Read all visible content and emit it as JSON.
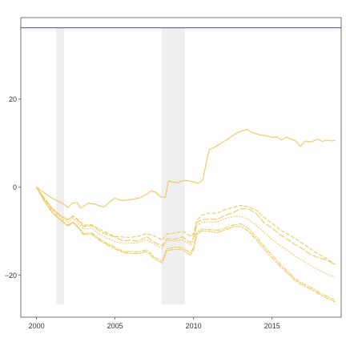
{
  "chart_data": {
    "type": "line",
    "title": "",
    "xlabel": "",
    "ylabel": "",
    "xlim": [
      1999.0,
      2019.4
    ],
    "ylim": [
      -29.5,
      38.5
    ],
    "grid": false,
    "legend": "none",
    "x_ticks": [
      2000,
      2005,
      2010,
      2015
    ],
    "x_tick_labels": [
      "2000",
      "2005",
      "2010",
      "2015"
    ],
    "y_ticks": [
      -20,
      0,
      20
    ],
    "y_tick_labels": [
      "−20",
      "0",
      "20"
    ],
    "top_line": {
      "y": 36.2,
      "color": "#6a6aa6"
    },
    "shaded_periods": [
      {
        "x0": 2001.25,
        "x1": 2001.75,
        "y0": -26.6,
        "y1": 36.2
      },
      {
        "x0": 2007.95,
        "x1": 2009.45,
        "y0": -26.6,
        "y1": 36.2
      }
    ],
    "colors": {
      "series": "#f2c85b",
      "shade": "#efefef",
      "axis": "#555555"
    },
    "series": [
      {
        "style": "solid",
        "points": [
          [
            2000.0,
            0.0
          ],
          [
            2000.3,
            -0.8
          ],
          [
            2000.6,
            -1.5
          ],
          [
            2000.9,
            -2.3
          ],
          [
            2001.2,
            -2.9
          ],
          [
            2001.5,
            -3.4
          ],
          [
            2001.8,
            -4.0
          ],
          [
            2002.0,
            -4.6
          ],
          [
            2002.3,
            -3.6
          ],
          [
            2002.6,
            -3.5
          ],
          [
            2002.8,
            -4.8
          ],
          [
            2003.0,
            -4.3
          ],
          [
            2003.3,
            -3.6
          ],
          [
            2003.7,
            -3.8
          ],
          [
            2004.0,
            -4.2
          ],
          [
            2004.3,
            -4.5
          ],
          [
            2004.6,
            -3.5
          ],
          [
            2005.0,
            -2.5
          ],
          [
            2005.4,
            -3.0
          ],
          [
            2005.8,
            -2.9
          ],
          [
            2006.2,
            -2.7
          ],
          [
            2006.6,
            -2.4
          ],
          [
            2007.0,
            -1.6
          ],
          [
            2007.3,
            -0.8
          ],
          [
            2007.6,
            -1.2
          ],
          [
            2007.9,
            -2.2
          ],
          [
            2008.2,
            -2.3
          ],
          [
            2008.4,
            1.4
          ],
          [
            2008.7,
            1.2
          ],
          [
            2009.0,
            1.0
          ],
          [
            2009.3,
            1.5
          ],
          [
            2009.6,
            1.5
          ],
          [
            2009.9,
            1.3
          ],
          [
            2010.2,
            1.0
          ],
          [
            2010.4,
            1.1
          ],
          [
            2010.6,
            1.8
          ],
          [
            2010.8,
            5.5
          ],
          [
            2011.0,
            8.5
          ],
          [
            2011.4,
            9.2
          ],
          [
            2011.8,
            10.1
          ],
          [
            2012.3,
            11.2
          ],
          [
            2012.7,
            12.2
          ],
          [
            2013.1,
            12.8
          ],
          [
            2013.4,
            13.1
          ],
          [
            2013.8,
            12.3
          ],
          [
            2014.2,
            11.9
          ],
          [
            2014.6,
            11.7
          ],
          [
            2015.0,
            11.3
          ],
          [
            2015.3,
            11.4
          ],
          [
            2015.6,
            10.7
          ],
          [
            2015.9,
            11.4
          ],
          [
            2016.2,
            10.9
          ],
          [
            2016.5,
            10.5
          ],
          [
            2016.8,
            9.3
          ],
          [
            2017.1,
            10.5
          ],
          [
            2017.5,
            10.3
          ],
          [
            2017.9,
            10.9
          ],
          [
            2018.2,
            10.4
          ],
          [
            2018.5,
            10.7
          ],
          [
            2018.8,
            10.5
          ],
          [
            2019.0,
            10.6
          ]
        ]
      },
      {
        "style": "longdash",
        "points": [
          [
            2000.0,
            0.0
          ],
          [
            2000.5,
            -2.5
          ],
          [
            2001.0,
            -4.8
          ],
          [
            2001.5,
            -6.3
          ],
          [
            2002.0,
            -7.5
          ],
          [
            2002.3,
            -6.6
          ],
          [
            2002.6,
            -7.4
          ],
          [
            2003.0,
            -8.9
          ],
          [
            2003.5,
            -8.7
          ],
          [
            2004.0,
            -9.9
          ],
          [
            2004.5,
            -10.8
          ],
          [
            2005.0,
            -11.3
          ],
          [
            2005.5,
            -12.2
          ],
          [
            2006.0,
            -12.0
          ],
          [
            2006.5,
            -12.3
          ],
          [
            2007.0,
            -11.2
          ],
          [
            2007.5,
            -12.5
          ],
          [
            2008.0,
            -13.3
          ],
          [
            2008.3,
            -11.7
          ],
          [
            2008.8,
            -11.8
          ],
          [
            2009.3,
            -11.3
          ],
          [
            2009.8,
            -12.6
          ],
          [
            2010.0,
            -11.4
          ],
          [
            2010.2,
            -8.0
          ],
          [
            2010.5,
            -7.4
          ],
          [
            2011.0,
            -7.2
          ],
          [
            2011.5,
            -7.3
          ],
          [
            2012.0,
            -6.4
          ],
          [
            2012.5,
            -5.8
          ],
          [
            2013.0,
            -4.9
          ],
          [
            2013.5,
            -4.9
          ],
          [
            2014.0,
            -6.0
          ],
          [
            2014.5,
            -8.1
          ],
          [
            2015.0,
            -9.3
          ],
          [
            2015.5,
            -10.7
          ],
          [
            2016.0,
            -11.9
          ],
          [
            2016.5,
            -13.1
          ],
          [
            2017.0,
            -14.1
          ],
          [
            2017.5,
            -15.4
          ],
          [
            2018.0,
            -16.0
          ],
          [
            2018.5,
            -16.6
          ],
          [
            2019.0,
            -17.5
          ]
        ]
      },
      {
        "style": "dashed",
        "points": [
          [
            2000.0,
            0.0
          ],
          [
            2000.5,
            -2.6
          ],
          [
            2001.0,
            -5.0
          ],
          [
            2001.5,
            -6.4
          ],
          [
            2002.0,
            -7.4
          ],
          [
            2002.3,
            -6.5
          ],
          [
            2002.6,
            -7.2
          ],
          [
            2003.0,
            -8.6
          ],
          [
            2003.5,
            -8.5
          ],
          [
            2004.0,
            -9.5
          ],
          [
            2004.5,
            -10.4
          ],
          [
            2005.0,
            -11.2
          ],
          [
            2005.5,
            -11.3
          ],
          [
            2006.0,
            -11.4
          ],
          [
            2006.5,
            -11.1
          ],
          [
            2007.0,
            -10.5
          ],
          [
            2007.5,
            -11.1
          ],
          [
            2008.0,
            -12.0
          ],
          [
            2008.3,
            -10.6
          ],
          [
            2008.8,
            -10.4
          ],
          [
            2009.3,
            -10.0
          ],
          [
            2009.8,
            -11.1
          ],
          [
            2010.0,
            -10.6
          ],
          [
            2010.2,
            -7.6
          ],
          [
            2010.5,
            -6.4
          ],
          [
            2011.0,
            -5.9
          ],
          [
            2011.5,
            -5.9
          ],
          [
            2012.0,
            -5.1
          ],
          [
            2012.5,
            -4.6
          ],
          [
            2013.0,
            -4.1
          ],
          [
            2013.5,
            -4.5
          ],
          [
            2014.0,
            -5.2
          ],
          [
            2014.5,
            -6.9
          ],
          [
            2015.0,
            -8.2
          ],
          [
            2015.5,
            -9.6
          ],
          [
            2016.0,
            -10.7
          ],
          [
            2016.5,
            -11.7
          ],
          [
            2017.0,
            -12.9
          ],
          [
            2017.5,
            -14.1
          ],
          [
            2018.0,
            -15.3
          ],
          [
            2018.5,
            -16.3
          ],
          [
            2019.0,
            -17.5
          ]
        ]
      },
      {
        "style": "dotted",
        "points": [
          [
            2000.0,
            0.0
          ],
          [
            2000.5,
            -2.8
          ],
          [
            2001.0,
            -5.1
          ],
          [
            2001.5,
            -6.7
          ],
          [
            2002.0,
            -8.0
          ],
          [
            2002.3,
            -7.1
          ],
          [
            2002.6,
            -7.9
          ],
          [
            2003.0,
            -9.5
          ],
          [
            2003.5,
            -9.3
          ],
          [
            2004.0,
            -10.6
          ],
          [
            2004.5,
            -11.6
          ],
          [
            2005.0,
            -12.3
          ],
          [
            2005.5,
            -12.8
          ],
          [
            2006.0,
            -12.7
          ],
          [
            2006.5,
            -12.6
          ],
          [
            2007.0,
            -11.9
          ],
          [
            2007.5,
            -12.9
          ],
          [
            2008.0,
            -13.9
          ],
          [
            2008.3,
            -12.1
          ],
          [
            2008.8,
            -12.2
          ],
          [
            2009.3,
            -11.9
          ],
          [
            2009.8,
            -13.2
          ],
          [
            2010.0,
            -12.1
          ],
          [
            2010.2,
            -8.8
          ],
          [
            2010.5,
            -7.9
          ],
          [
            2011.0,
            -7.9
          ],
          [
            2011.5,
            -7.9
          ],
          [
            2012.0,
            -7.1
          ],
          [
            2012.5,
            -6.7
          ],
          [
            2013.0,
            -6.6
          ],
          [
            2013.5,
            -7.3
          ],
          [
            2014.0,
            -8.7
          ],
          [
            2014.5,
            -10.3
          ],
          [
            2015.0,
            -11.9
          ],
          [
            2015.5,
            -13.2
          ],
          [
            2016.0,
            -14.4
          ],
          [
            2016.5,
            -15.7
          ],
          [
            2017.0,
            -16.8
          ],
          [
            2017.5,
            -17.9
          ],
          [
            2018.0,
            -18.8
          ],
          [
            2018.5,
            -19.7
          ],
          [
            2019.0,
            -20.5
          ]
        ]
      },
      {
        "style": "dashdot",
        "points": [
          [
            2000.0,
            0.0
          ],
          [
            2000.5,
            -3.1
          ],
          [
            2001.0,
            -5.6
          ],
          [
            2001.5,
            -7.2
          ],
          [
            2002.0,
            -8.6
          ],
          [
            2002.3,
            -7.8
          ],
          [
            2002.6,
            -8.8
          ],
          [
            2003.0,
            -10.5
          ],
          [
            2003.5,
            -10.3
          ],
          [
            2004.0,
            -11.7
          ],
          [
            2004.5,
            -12.8
          ],
          [
            2005.0,
            -13.6
          ],
          [
            2005.5,
            -14.6
          ],
          [
            2006.0,
            -14.6
          ],
          [
            2006.5,
            -14.7
          ],
          [
            2007.0,
            -14.2
          ],
          [
            2007.5,
            -15.8
          ],
          [
            2008.0,
            -16.8
          ],
          [
            2008.3,
            -14.0
          ],
          [
            2008.8,
            -13.6
          ],
          [
            2009.3,
            -13.8
          ],
          [
            2009.8,
            -14.9
          ],
          [
            2010.0,
            -13.8
          ],
          [
            2010.2,
            -10.3
          ],
          [
            2010.5,
            -9.5
          ],
          [
            2011.0,
            -9.6
          ],
          [
            2011.5,
            -9.8
          ],
          [
            2012.0,
            -9.3
          ],
          [
            2012.5,
            -8.6
          ],
          [
            2013.0,
            -8.3
          ],
          [
            2013.5,
            -9.4
          ],
          [
            2014.0,
            -11.3
          ],
          [
            2014.5,
            -13.5
          ],
          [
            2015.0,
            -15.4
          ],
          [
            2015.5,
            -17.4
          ],
          [
            2016.0,
            -19.1
          ],
          [
            2016.5,
            -20.9
          ],
          [
            2017.0,
            -22.0
          ],
          [
            2017.5,
            -22.8
          ],
          [
            2018.0,
            -23.9
          ],
          [
            2018.5,
            -24.8
          ],
          [
            2019.0,
            -25.6
          ]
        ]
      },
      {
        "style": "twodash",
        "points": [
          [
            2000.0,
            0.0
          ],
          [
            2000.5,
            -3.2
          ],
          [
            2001.0,
            -5.8
          ],
          [
            2001.5,
            -7.4
          ],
          [
            2002.0,
            -8.9
          ],
          [
            2002.3,
            -8.0
          ],
          [
            2002.6,
            -9.0
          ],
          [
            2003.0,
            -10.8
          ],
          [
            2003.5,
            -10.6
          ],
          [
            2004.0,
            -12.0
          ],
          [
            2004.5,
            -13.1
          ],
          [
            2005.0,
            -14.0
          ],
          [
            2005.5,
            -14.8
          ],
          [
            2006.0,
            -15.0
          ],
          [
            2006.5,
            -15.1
          ],
          [
            2007.0,
            -14.6
          ],
          [
            2007.5,
            -16.2
          ],
          [
            2008.0,
            -17.2
          ],
          [
            2008.3,
            -14.4
          ],
          [
            2008.8,
            -14.1
          ],
          [
            2009.3,
            -14.2
          ],
          [
            2009.8,
            -15.4
          ],
          [
            2010.0,
            -14.2
          ],
          [
            2010.2,
            -10.8
          ],
          [
            2010.5,
            -9.9
          ],
          [
            2011.0,
            -10.0
          ],
          [
            2011.5,
            -10.3
          ],
          [
            2012.0,
            -9.7
          ],
          [
            2012.5,
            -9.0
          ],
          [
            2013.0,
            -8.9
          ],
          [
            2013.5,
            -10.0
          ],
          [
            2014.0,
            -11.9
          ],
          [
            2014.5,
            -14.1
          ],
          [
            2015.0,
            -16.0
          ],
          [
            2015.5,
            -17.9
          ],
          [
            2016.0,
            -19.6
          ],
          [
            2016.5,
            -21.3
          ],
          [
            2017.0,
            -22.4
          ],
          [
            2017.5,
            -23.2
          ],
          [
            2018.0,
            -24.3
          ],
          [
            2018.5,
            -25.2
          ],
          [
            2019.0,
            -26.0
          ]
        ]
      }
    ]
  }
}
